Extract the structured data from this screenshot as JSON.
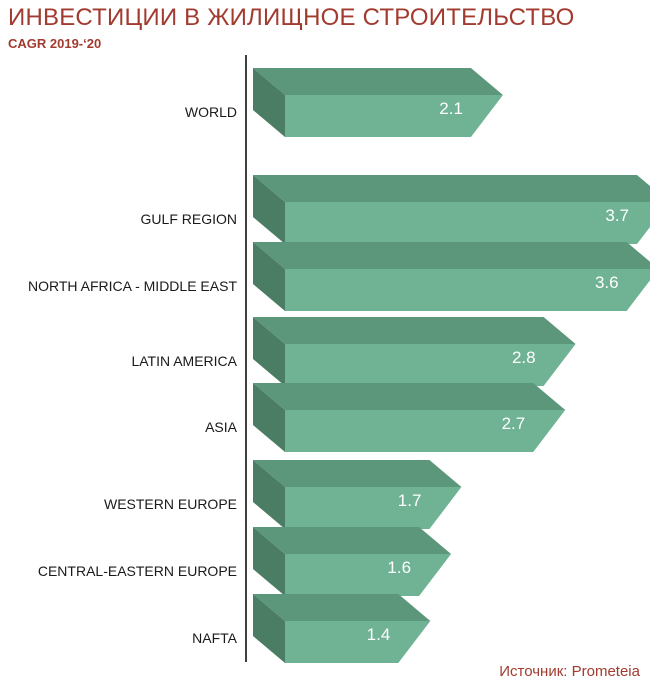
{
  "header": {
    "title": "ИНВЕСТИЦИИ В ЖИЛИЩНОЕ СТРОИТЕЛЬСТВО",
    "subtitle": "CAGR 2019-‘20"
  },
  "footer": {
    "source": "Источник: Prometeia"
  },
  "colors": {
    "bar_front": "#6fb294",
    "bar_top": "#5c977b",
    "bar_side": "#4a7d64",
    "axis": "#000000",
    "title": "#a23b2f"
  },
  "chart_data": {
    "type": "bar",
    "orientation": "horizontal",
    "style": "3d",
    "categories": [
      "WORLD",
      "GULF REGION",
      "NORTH AFRICA - MIDDLE EAST",
      "LATIN AMERICA",
      "ASIA",
      "WESTERN EUROPE",
      "CENTRAL-EASTERN EUROPE",
      "NAFTA"
    ],
    "values": [
      2.1,
      3.7,
      3.6,
      2.8,
      2.7,
      1.7,
      1.6,
      1.4
    ],
    "value_labels": [
      "2.1",
      "3.7",
      "3.6",
      "2.8",
      "2.7",
      "1.7",
      "1.6",
      "1.4"
    ],
    "title": "ИНВЕСТИЦИИ В ЖИЛИЩНОЕ СТРОИТЕЛЬСТВО",
    "subtitle": "CAGR 2019-‘20",
    "xlim": [
      0,
      3.7
    ],
    "grid": false,
    "legend": "none"
  }
}
